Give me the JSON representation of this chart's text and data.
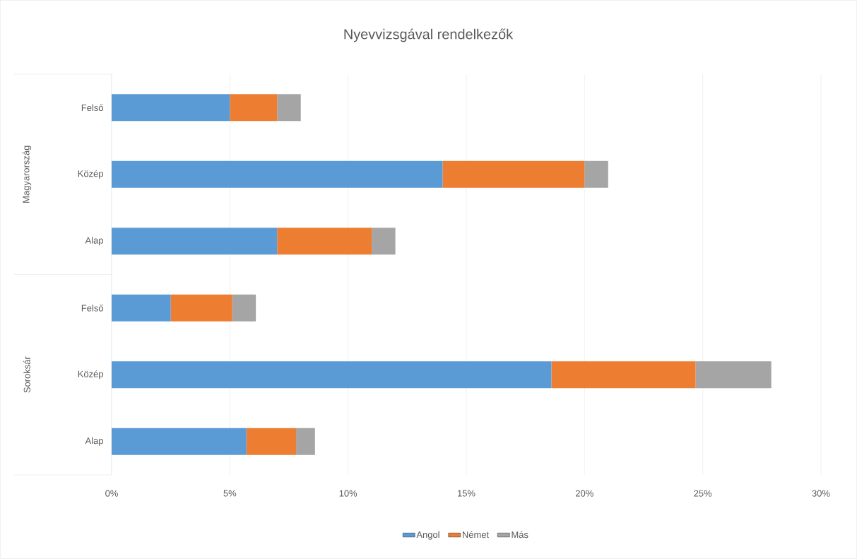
{
  "chart_data": {
    "type": "bar",
    "orientation": "horizontal",
    "stacked": true,
    "title": "Nyevvizsgával rendelkezők",
    "categories": [
      "Felső",
      "Közép",
      "Alap",
      "Felső",
      "Közép",
      "Alap"
    ],
    "annotations": [
      "Magyarország",
      "Soroksár"
    ],
    "series": [
      {
        "name": "Angol",
        "color": "#5b9bd5",
        "values": [
          5,
          14,
          7,
          2.5,
          18.6,
          5.7
        ]
      },
      {
        "name": "Német",
        "color": "#ed7d31",
        "values": [
          2,
          6,
          4,
          2.6,
          6.1,
          2.1
        ]
      },
      {
        "name": "Más",
        "color": "#a5a5a5",
        "values": [
          1,
          1,
          1,
          1,
          3.2,
          0.8
        ]
      }
    ],
    "xlim": [
      0,
      30
    ],
    "xticks": [
      {
        "value": 0,
        "label": "0%"
      },
      {
        "value": 5,
        "label": "5%"
      },
      {
        "value": 10,
        "label": "10%"
      },
      {
        "value": 15,
        "label": "15%"
      },
      {
        "value": 20,
        "label": "20%"
      },
      {
        "value": 25,
        "label": "25%"
      },
      {
        "value": 30,
        "label": "30%"
      }
    ],
    "grid": "x",
    "legend": "bottom"
  }
}
